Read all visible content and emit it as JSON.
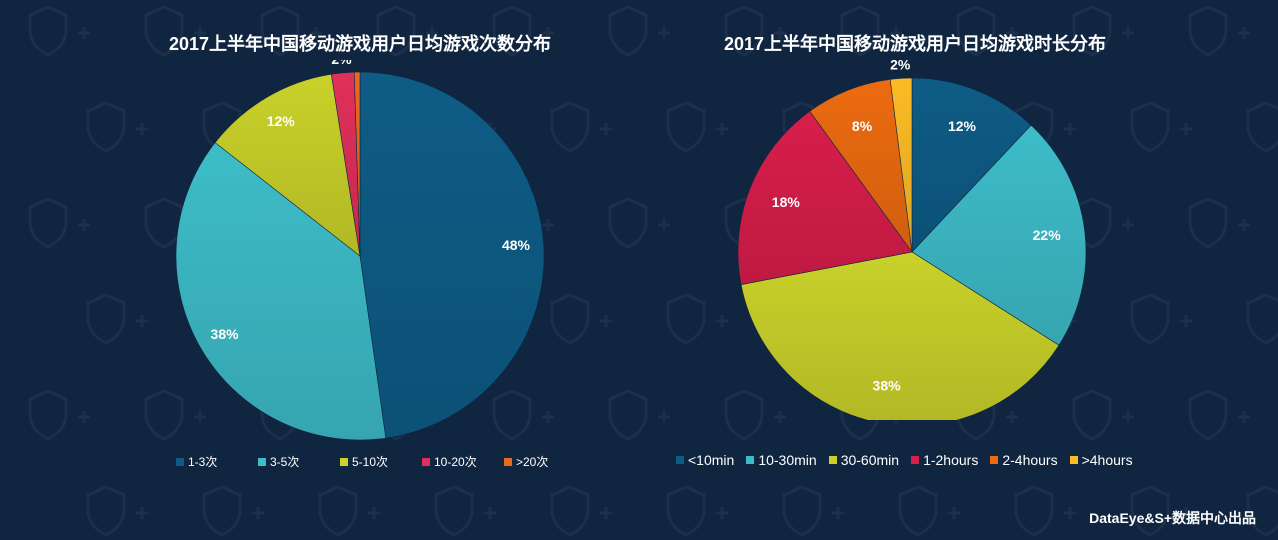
{
  "colors": {
    "background": "#0f2540",
    "label": "#ffffff"
  },
  "footer": "DataEye&S+数据中心出品",
  "chart_data": [
    {
      "type": "pie",
      "title": "2017上半年中国移动游戏用户日均游戏次数分布",
      "categories": [
        "1-3次",
        "3-5次",
        "5-10次",
        "10-20次",
        ">20次"
      ],
      "values": [
        48,
        38,
        12,
        2,
        0.5
      ],
      "labels": [
        "48%",
        "38%",
        "12%",
        "2%",
        ""
      ],
      "colors": [
        "#0e5c86",
        "#3dbcc8",
        "#c9d12a",
        "#e0305a",
        "#ea6a1e"
      ],
      "legend": "bottom"
    },
    {
      "type": "pie",
      "title": "2017上半年中国移动游戏用户日均游戏时长分布",
      "categories": [
        "<10min",
        "10-30min",
        "30-60min",
        "1-2hours",
        "2-4hours",
        ">4hours"
      ],
      "values": [
        12,
        22,
        38,
        18,
        8,
        2
      ],
      "labels": [
        "12%",
        "22%",
        "38%",
        "18%",
        "8%",
        "2%"
      ],
      "colors": [
        "#0e5c86",
        "#3dbcc8",
        "#c9d12a",
        "#d81e4b",
        "#ec6b10",
        "#fbbb26"
      ],
      "legend": "bottom"
    }
  ]
}
